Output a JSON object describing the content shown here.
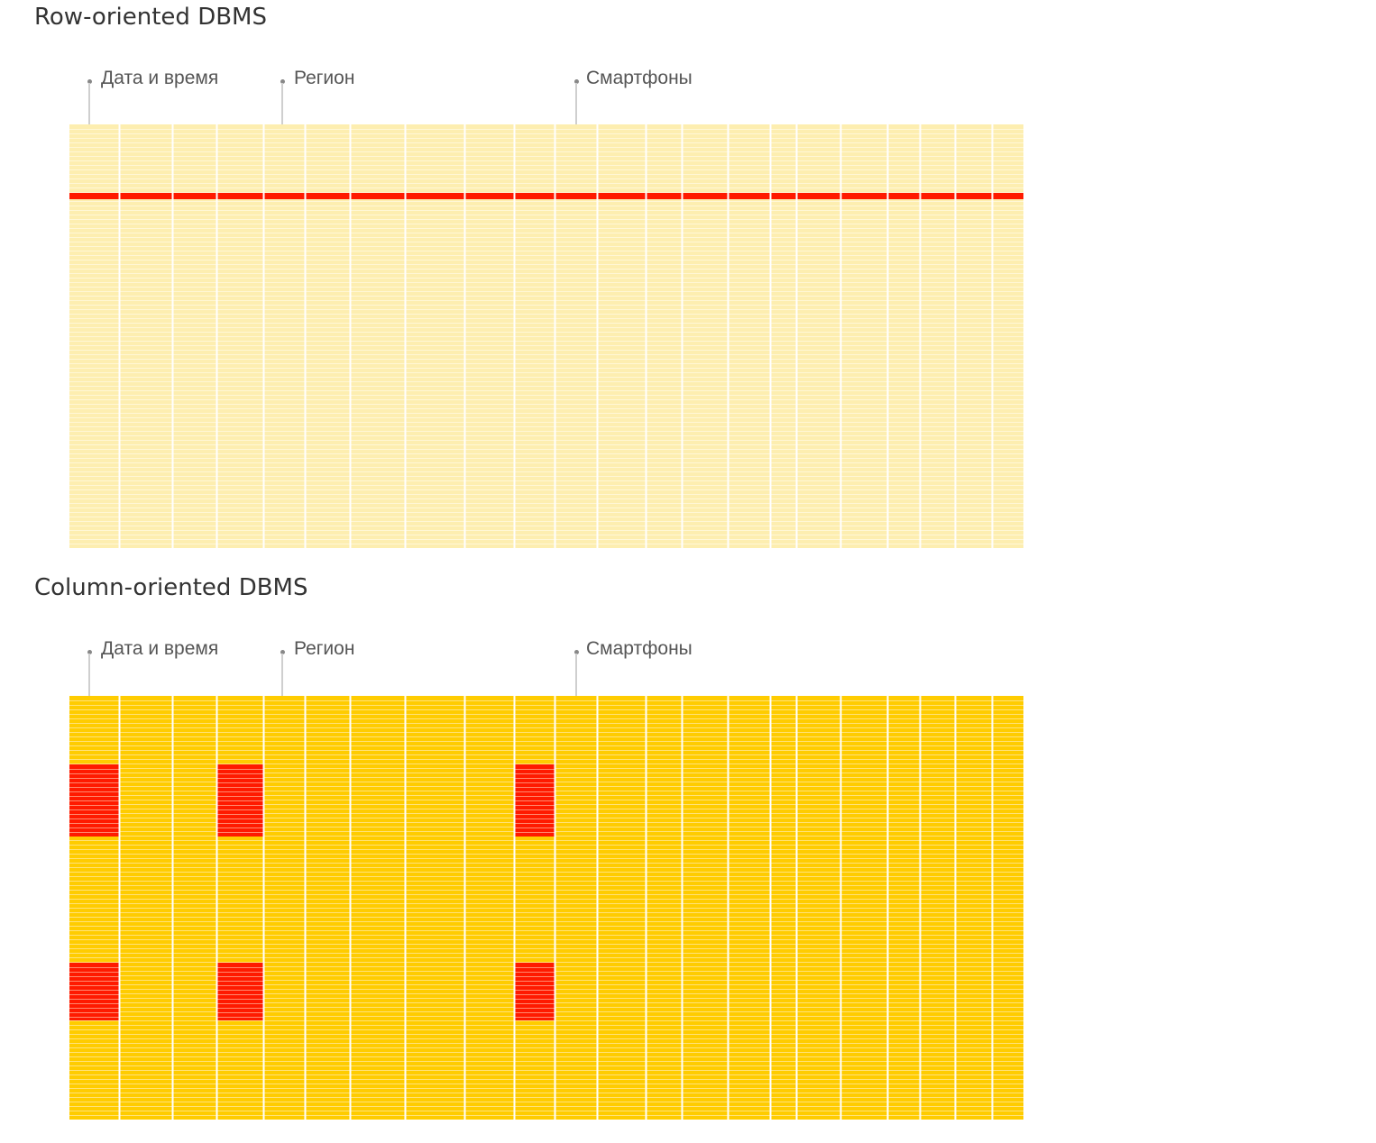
{
  "diagrams": [
    {
      "id": "row",
      "title": "Row-oriented DBMS",
      "labels": [
        "Дата и время",
        "Регион",
        "Смартфоны"
      ],
      "label_columns": [
        0,
        3,
        9
      ],
      "highlight": {
        "type": "row"
      }
    },
    {
      "id": "col",
      "title": "Column-oriented DBMS",
      "labels": [
        "Дата и время",
        "Регион",
        "Смартфоны"
      ],
      "label_columns": [
        0,
        3,
        9
      ],
      "highlight": {
        "type": "blocks",
        "columns": [
          0,
          3,
          9
        ]
      }
    }
  ],
  "colors": {
    "row_fill": "#fdeeb0",
    "row_line": "#fff7d6",
    "col_fill": "#ffcc00",
    "col_line": "#ffe27a",
    "vertical_line": "#ffffff",
    "highlight": "#ff1a00",
    "highlight_line": "#ff8a70"
  }
}
